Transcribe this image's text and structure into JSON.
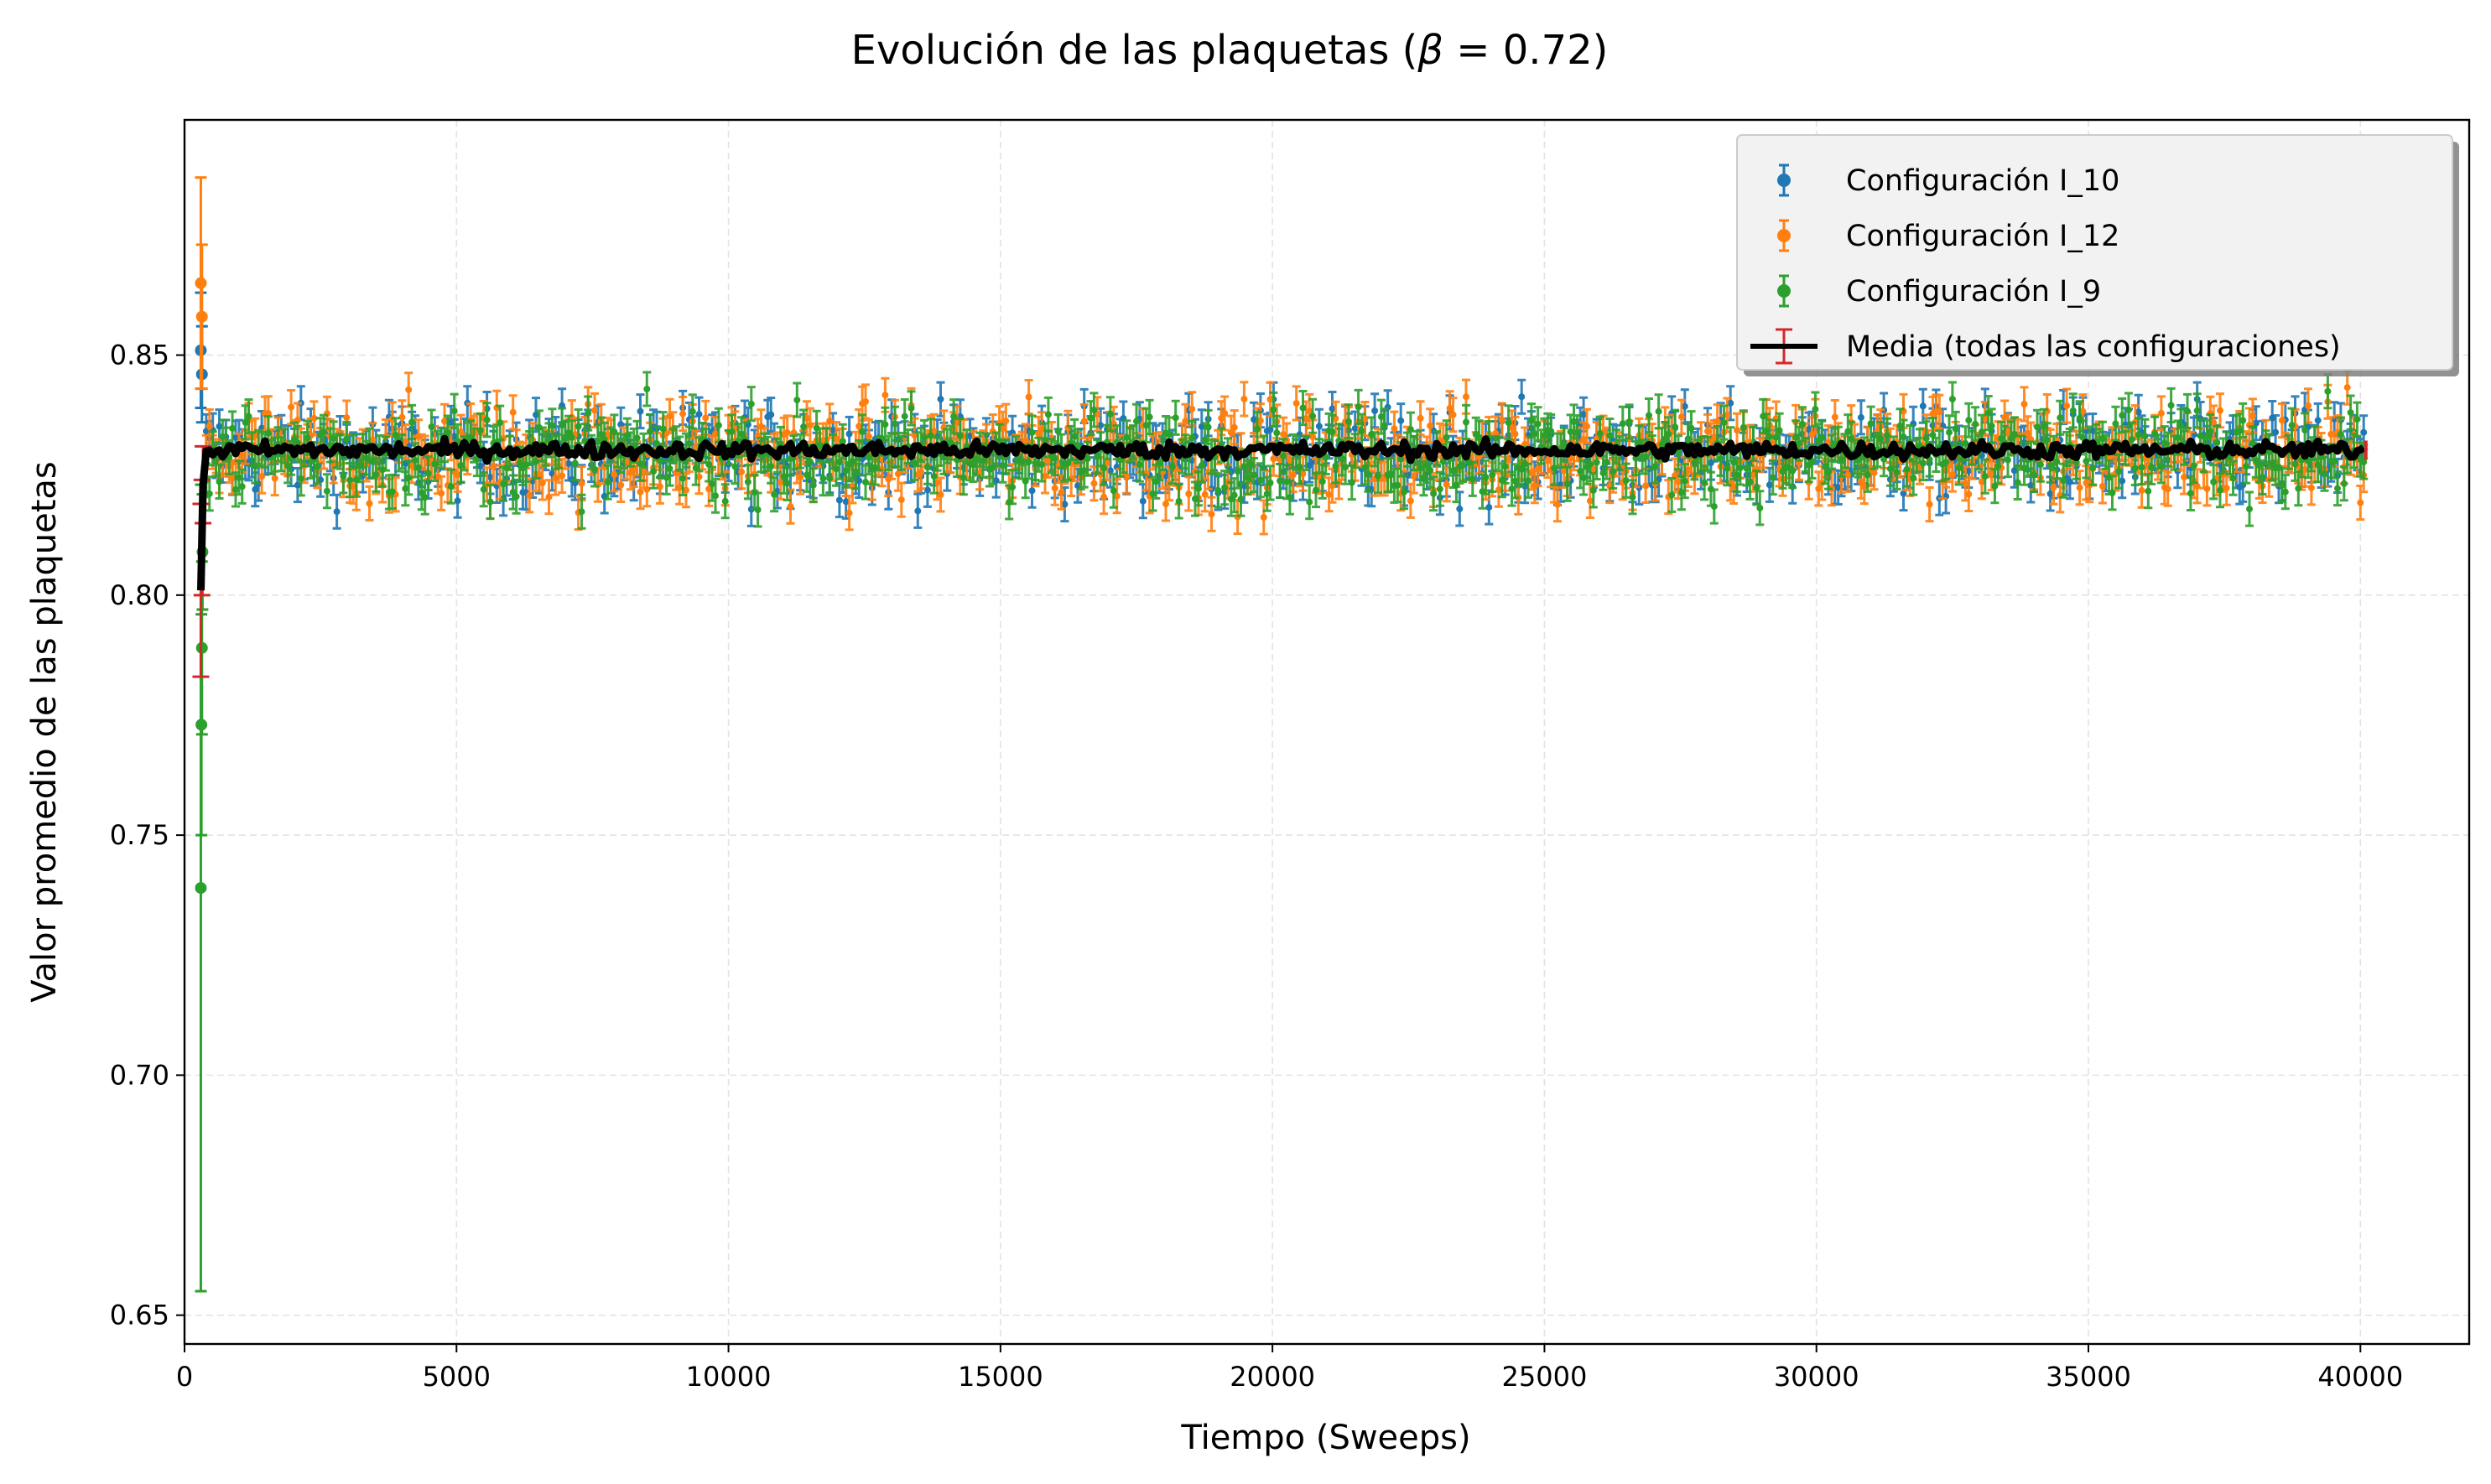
{
  "chart_data": {
    "type": "scatter",
    "title_prefix": "Evolución de las plaquetas (",
    "title_symbol": "β",
    "title_suffix": " = 0.72)",
    "xlabel": "Tiempo (Sweeps)",
    "ylabel": "Valor promedio de las plaquetas",
    "xlim": [
      0,
      42000
    ],
    "ylim": [
      0.644,
      0.899
    ],
    "x_ticks": [
      "0",
      "5000",
      "10000",
      "15000",
      "20000",
      "25000",
      "30000",
      "35000",
      "40000"
    ],
    "y_ticks": [
      "0.65",
      "0.70",
      "0.75",
      "0.80",
      "0.85"
    ],
    "grid": true,
    "legend_position": "top-right",
    "x_start": 300,
    "x_end": 40100,
    "series": [
      {
        "name": "Configuración I_10",
        "color": "#1f77b4",
        "steady_mean": 0.8295,
        "steady_spread": 0.0065,
        "steady_error": 0.0035,
        "initial_points": [
          {
            "x": 300,
            "y": 0.851,
            "err": 0.012
          },
          {
            "x": 320,
            "y": 0.846,
            "err": 0.01
          }
        ]
      },
      {
        "name": "Configuración I_12",
        "color": "#ff7f0e",
        "steady_mean": 0.8295,
        "steady_spread": 0.0075,
        "steady_error": 0.0035,
        "initial_points": [
          {
            "x": 300,
            "y": 0.865,
            "err": 0.022
          },
          {
            "x": 320,
            "y": 0.858,
            "err": 0.015
          }
        ]
      },
      {
        "name": "Configuración I_9",
        "color": "#2ca02c",
        "steady_mean": 0.8295,
        "steady_spread": 0.0065,
        "steady_error": 0.0035,
        "initial_points": [
          {
            "x": 300,
            "y": 0.739,
            "err": 0.084
          },
          {
            "x": 310,
            "y": 0.773,
            "err": 0.023
          },
          {
            "x": 320,
            "y": 0.789,
            "err": 0.018
          },
          {
            "x": 330,
            "y": 0.809,
            "err": 0.012
          }
        ]
      },
      {
        "name": "Media (todas las configuraciones)",
        "color": "#000000",
        "error_color": "#d62728",
        "steady_mean": 0.8302,
        "steady_spread": 0.0012,
        "initial_points": [
          {
            "x": 300,
            "y": 0.801,
            "err": 0.018
          },
          {
            "x": 320,
            "y": 0.812,
            "err": 0.012
          },
          {
            "x": 340,
            "y": 0.823,
            "err": 0.008
          }
        ]
      }
    ]
  }
}
